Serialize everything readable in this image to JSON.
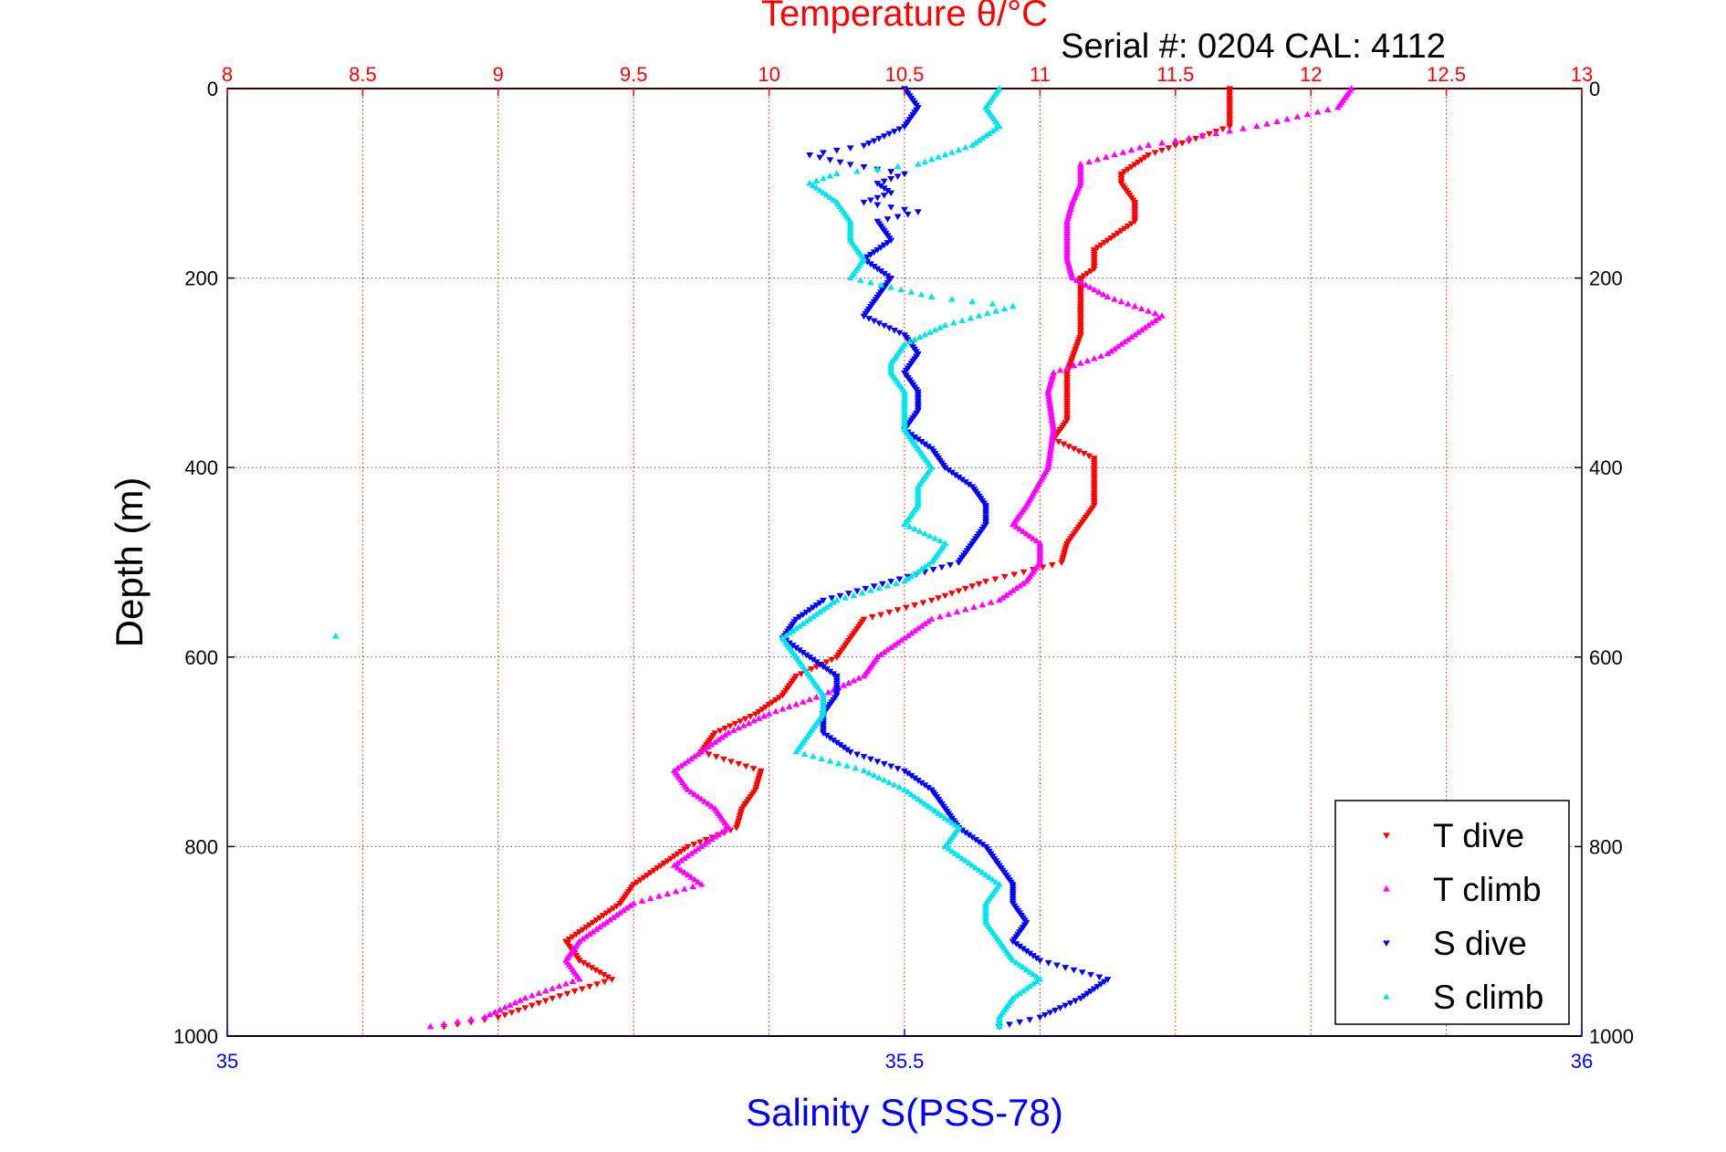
{
  "chart_data": {
    "type": "scatter",
    "title": "Temperature θ/°C",
    "subtitle": "Serial #: 0204  CAL: 4112",
    "ylabel": "Depth (m)",
    "x2label": "Salinity S(PSS-78)",
    "x_temperature": {
      "lim": [
        8,
        13
      ],
      "ticks": [
        "8",
        "8.5",
        "9",
        "9.5",
        "10",
        "10.5",
        "11",
        "11.5",
        "12",
        "12.5",
        "13"
      ],
      "color": "#ff0000"
    },
    "x_salinity": {
      "lim": [
        35,
        36
      ],
      "ticks": [
        "35",
        "35.5",
        "36"
      ],
      "color": "#0000ff"
    },
    "y": {
      "lim": [
        0,
        1000
      ],
      "ticks": [
        "0",
        "200",
        "400",
        "600",
        "800",
        "1000"
      ],
      "reversed": true
    },
    "grid": true,
    "legend": {
      "placement": "bottom-right",
      "entries": [
        "T dive",
        "T climb",
        "S dive",
        "S climb"
      ]
    },
    "series": [
      {
        "name": "T dive",
        "axis": "temperature",
        "color": "#ff0000",
        "marker": "triangle-down",
        "depth": [
          0,
          40,
          60,
          70,
          80,
          90,
          100,
          120,
          140,
          150,
          170,
          190,
          200,
          220,
          260,
          300,
          350,
          370,
          390,
          400,
          420,
          440,
          460,
          480,
          500,
          520,
          540,
          560,
          580,
          600,
          620,
          640,
          660,
          680,
          700,
          720,
          740,
          760,
          780,
          800,
          820,
          840,
          860,
          880,
          900,
          920,
          940,
          960,
          980,
          990
        ],
        "values": [
          11.7,
          11.7,
          11.5,
          11.4,
          11.35,
          11.3,
          11.3,
          11.35,
          11.35,
          11.3,
          11.2,
          11.2,
          11.15,
          11.15,
          11.15,
          11.1,
          11.1,
          11.05,
          11.2,
          11.2,
          11.2,
          11.2,
          11.15,
          11.1,
          11.08,
          10.8,
          10.6,
          10.35,
          10.3,
          10.25,
          10.1,
          10.05,
          9.95,
          9.8,
          9.75,
          9.97,
          9.95,
          9.9,
          9.88,
          9.7,
          9.6,
          9.5,
          9.45,
          9.35,
          9.25,
          9.3,
          9.42,
          9.2,
          9.0,
          8.8
        ]
      },
      {
        "name": "T climb",
        "axis": "temperature",
        "color": "#ff00ff",
        "marker": "triangle-up",
        "depth": [
          0,
          20,
          40,
          60,
          80,
          90,
          100,
          120,
          140,
          160,
          180,
          200,
          220,
          240,
          260,
          280,
          300,
          320,
          360,
          400,
          440,
          460,
          480,
          500,
          520,
          540,
          560,
          580,
          600,
          620,
          640,
          660,
          680,
          700,
          720,
          740,
          760,
          780,
          800,
          820,
          840,
          860,
          880,
          900,
          920,
          940,
          960,
          980,
          990
        ],
        "values": [
          12.15,
          12.1,
          11.8,
          11.4,
          11.15,
          11.15,
          11.15,
          11.12,
          11.1,
          11.1,
          11.1,
          11.12,
          11.25,
          11.45,
          11.35,
          11.25,
          11.05,
          11.03,
          11.05,
          11.03,
          10.95,
          10.9,
          11.0,
          11.0,
          10.95,
          10.85,
          10.6,
          10.5,
          10.4,
          10.35,
          10.2,
          10.0,
          9.85,
          9.75,
          9.65,
          9.7,
          9.8,
          9.85,
          9.75,
          9.65,
          9.75,
          9.5,
          9.4,
          9.3,
          9.25,
          9.3,
          9.1,
          8.95,
          8.75
        ]
      },
      {
        "name": "S dive",
        "axis": "salinity",
        "color": "#0000ff",
        "marker": "triangle-down",
        "depth": [
          0,
          20,
          40,
          60,
          70,
          80,
          90,
          100,
          110,
          120,
          130,
          140,
          160,
          180,
          200,
          220,
          240,
          260,
          280,
          300,
          320,
          340,
          360,
          380,
          400,
          420,
          440,
          460,
          480,
          500,
          520,
          540,
          560,
          580,
          600,
          620,
          640,
          660,
          680,
          700,
          720,
          740,
          760,
          780,
          800,
          820,
          840,
          860,
          880,
          900,
          920,
          940,
          960,
          980,
          990
        ],
        "values": [
          35.5,
          35.51,
          35.5,
          35.47,
          35.43,
          35.46,
          35.5,
          35.48,
          35.49,
          35.47,
          35.51,
          35.48,
          35.49,
          35.47,
          35.49,
          35.48,
          35.47,
          35.5,
          35.51,
          35.5,
          35.51,
          35.51,
          35.5,
          35.52,
          35.53,
          35.55,
          35.56,
          35.56,
          35.55,
          35.54,
          35.49,
          35.44,
          35.42,
          35.41,
          35.43,
          35.45,
          35.45,
          35.44,
          35.44,
          35.46,
          35.5,
          35.52,
          35.53,
          35.54,
          35.56,
          35.57,
          35.58,
          35.58,
          35.59,
          35.58,
          35.6,
          35.65,
          35.63,
          35.6,
          35.57
        ]
      },
      {
        "name": "S climb",
        "axis": "salinity",
        "color": "#00e5ee",
        "marker": "triangle-up",
        "depth": [
          0,
          20,
          40,
          60,
          80,
          90,
          100,
          120,
          140,
          160,
          180,
          200,
          220,
          230,
          250,
          270,
          290,
          300,
          320,
          340,
          360,
          380,
          400,
          420,
          440,
          460,
          480,
          500,
          520,
          540,
          560,
          580,
          600,
          620,
          640,
          660,
          680,
          700,
          720,
          740,
          760,
          780,
          800,
          820,
          840,
          860,
          880,
          900,
          920,
          940,
          960,
          980,
          990
        ],
        "values": [
          35.57,
          35.56,
          35.57,
          35.55,
          35.51,
          35.45,
          35.43,
          35.45,
          35.46,
          35.46,
          35.47,
          35.46,
          35.52,
          35.58,
          35.53,
          35.5,
          35.49,
          35.49,
          35.5,
          35.5,
          35.5,
          35.51,
          35.52,
          35.51,
          35.51,
          35.5,
          35.53,
          35.52,
          35.5,
          35.45,
          35.43,
          35.41,
          35.42,
          35.43,
          35.44,
          35.44,
          35.43,
          35.42,
          35.47,
          35.5,
          35.52,
          35.54,
          35.53,
          35.55,
          35.57,
          35.56,
          35.56,
          35.57,
          35.58,
          35.6,
          35.58,
          35.57,
          35.57
        ]
      },
      {
        "name": "",
        "axis": "salinity",
        "color": "#00e5ee",
        "marker": "triangle-up",
        "depth": [
          578
        ],
        "values": [
          35.08
        ]
      }
    ]
  }
}
